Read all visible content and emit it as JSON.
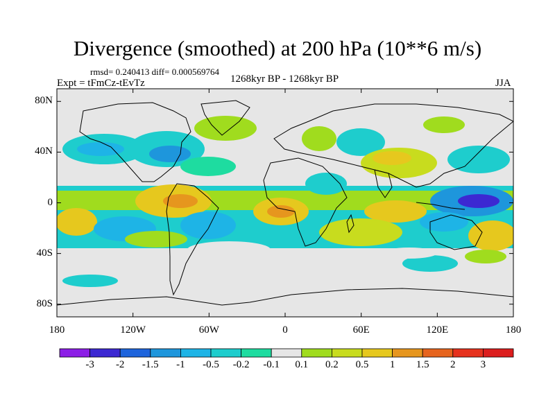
{
  "title": "Divergence (smoothed) at 200 hPa (10**6 m/s)",
  "stats": "rmsd= 0.240413 diff= 0.000569764",
  "expt": "Expt = tFmCz-tEvTz",
  "period": "1268kyr BP - 1268kyr BP",
  "season": "JJA",
  "map": {
    "lon_range": [
      -180,
      180
    ],
    "lat_range": [
      -90,
      90
    ],
    "y_ticks": [
      {
        "lat": 80,
        "label": "80N"
      },
      {
        "lat": 40,
        "label": "40N"
      },
      {
        "lat": 0,
        "label": "0"
      },
      {
        "lat": -40,
        "label": "40S"
      },
      {
        "lat": -80,
        "label": "80S"
      }
    ],
    "x_ticks": [
      {
        "lon": -180,
        "label": "180"
      },
      {
        "lon": -120,
        "label": "120W"
      },
      {
        "lon": -60,
        "label": "60W"
      },
      {
        "lon": 0,
        "label": "0"
      },
      {
        "lon": 60,
        "label": "60E"
      },
      {
        "lon": 120,
        "label": "120E"
      },
      {
        "lon": 180,
        "label": "180"
      }
    ],
    "missing_color": "#e6e6e6"
  },
  "colorbar": {
    "levels": [
      "-3",
      "-2",
      "-1.5",
      "-1",
      "-0.5",
      "-0.2",
      "-0.1",
      "0.1",
      "0.2",
      "0.5",
      "1",
      "1.5",
      "2",
      "3"
    ],
    "colors": [
      "#8c1ee6",
      "#3c28d2",
      "#1e64dc",
      "#1e96dc",
      "#1eb4e6",
      "#1ecdcd",
      "#1edca0",
      "#e6e6e6",
      "#a0dc1e",
      "#c8dc1e",
      "#e6c81e",
      "#e6961e",
      "#e6641e",
      "#e6321e",
      "#dc1e1e"
    ]
  }
}
